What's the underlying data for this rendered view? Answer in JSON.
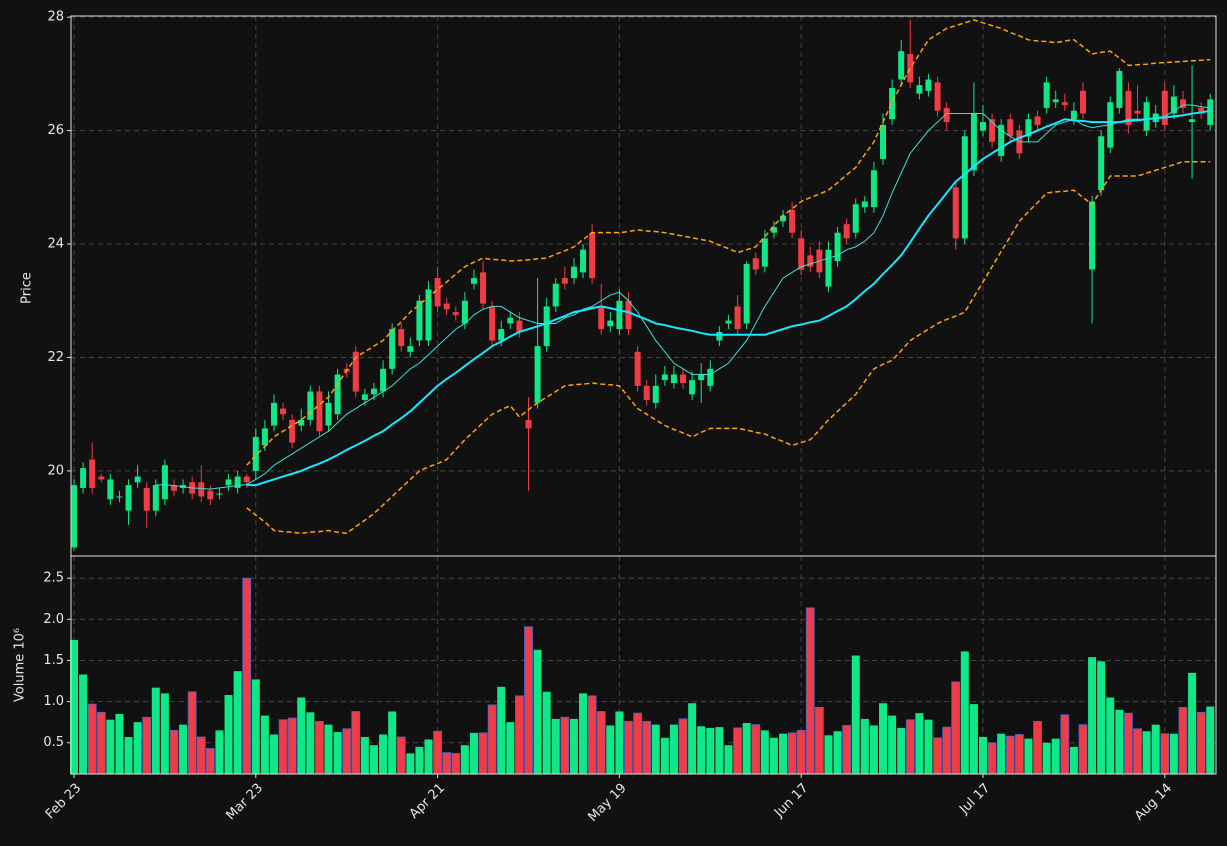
{
  "chart_data": {
    "type": "candlestick",
    "categories": [
      "Feb 23",
      null,
      null,
      null,
      null,
      null,
      null,
      null,
      null,
      null,
      null,
      null,
      null,
      null,
      null,
      null,
      null,
      null,
      null,
      null,
      "Mar 23",
      null,
      null,
      null,
      null,
      null,
      null,
      null,
      null,
      null,
      null,
      null,
      null,
      null,
      null,
      null,
      null,
      null,
      null,
      null,
      "Apr 21",
      null,
      null,
      null,
      null,
      null,
      null,
      null,
      null,
      null,
      null,
      null,
      null,
      null,
      null,
      null,
      null,
      null,
      null,
      null,
      "May 19",
      null,
      null,
      null,
      null,
      null,
      null,
      null,
      null,
      null,
      null,
      null,
      null,
      null,
      null,
      null,
      null,
      null,
      null,
      null,
      "Jun 17",
      null,
      null,
      null,
      null,
      null,
      null,
      null,
      null,
      null,
      null,
      null,
      null,
      null,
      null,
      null,
      null,
      null,
      null,
      null,
      "Jul 17",
      null,
      null,
      null,
      null,
      null,
      null,
      null,
      null,
      null,
      null,
      null,
      null,
      null,
      null,
      null,
      null,
      null,
      null,
      null,
      "Aug 14",
      null,
      null,
      null,
      null,
      null
    ],
    "open": [
      18.65,
      19.7,
      20.2,
      19.9,
      19.5,
      19.55,
      19.3,
      19.8,
      19.7,
      19.3,
      19.5,
      19.75,
      19.7,
      19.8,
      19.8,
      19.65,
      19.6,
      19.75,
      19.7,
      19.9,
      20.0,
      20.45,
      20.8,
      21.1,
      20.9,
      20.8,
      20.9,
      21.4,
      20.8,
      21.0,
      21.8,
      22.1,
      21.25,
      21.35,
      21.4,
      21.8,
      22.5,
      22.1,
      22.3,
      22.3,
      23.4,
      22.95,
      22.8,
      22.6,
      23.3,
      23.5,
      22.9,
      22.3,
      22.6,
      22.65,
      20.9,
      21.2,
      22.2,
      22.9,
      23.4,
      23.4,
      23.5,
      24.2,
      22.9,
      22.55,
      22.5,
      23.0,
      22.1,
      21.5,
      21.2,
      21.6,
      21.55,
      21.7,
      21.35,
      21.6,
      21.5,
      22.3,
      22.6,
      22.9,
      22.6,
      23.75,
      23.6,
      24.2,
      24.4,
      24.6,
      24.1,
      23.8,
      23.9,
      23.25,
      23.7,
      24.35,
      24.2,
      24.65,
      24.65,
      25.5,
      26.2,
      26.9,
      27.35,
      26.65,
      26.7,
      26.85,
      26.4,
      25.0,
      24.1,
      25.3,
      26.0,
      26.2,
      25.55,
      26.2,
      26.0,
      25.9,
      26.25,
      26.4,
      26.5,
      26.5,
      26.2,
      26.7,
      23.55,
      24.95,
      25.7,
      26.4,
      26.7,
      26.35,
      26.0,
      26.15,
      26.7,
      26.3,
      26.55,
      26.15,
      26.4,
      26.1
    ],
    "high": [
      19.85,
      20.15,
      20.5,
      19.95,
      19.95,
      19.65,
      19.85,
      20.1,
      19.8,
      19.85,
      20.2,
      19.85,
      19.85,
      19.9,
      20.1,
      19.75,
      19.7,
      19.95,
      20.0,
      19.95,
      20.75,
      20.9,
      21.35,
      21.2,
      21.0,
      21.1,
      21.5,
      21.5,
      21.4,
      21.8,
      21.9,
      22.2,
      21.45,
      21.55,
      21.95,
      22.6,
      22.6,
      22.35,
      23.1,
      23.35,
      23.6,
      23.05,
      22.9,
      23.15,
      23.55,
      23.7,
      23.0,
      22.65,
      22.8,
      22.8,
      21.3,
      23.4,
      23.05,
      23.4,
      23.6,
      23.75,
      24.0,
      24.35,
      23.3,
      22.8,
      23.2,
      23.15,
      22.2,
      21.6,
      21.7,
      21.85,
      21.85,
      21.8,
      21.75,
      21.9,
      21.95,
      22.55,
      22.75,
      23.1,
      23.7,
      23.85,
      24.25,
      24.4,
      24.6,
      24.75,
      24.25,
      23.95,
      24.05,
      24.05,
      24.3,
      24.45,
      24.8,
      24.85,
      25.45,
      26.3,
      26.9,
      27.6,
      27.95,
      26.95,
      27.0,
      26.95,
      26.5,
      25.1,
      26.0,
      26.85,
      26.45,
      26.3,
      26.2,
      26.3,
      26.1,
      26.3,
      26.35,
      26.95,
      26.7,
      26.65,
      26.5,
      26.85,
      24.85,
      26.0,
      26.6,
      27.1,
      26.85,
      26.8,
      26.6,
      26.45,
      26.85,
      26.8,
      26.7,
      27.15,
      26.5,
      26.65
    ],
    "low": [
      18.6,
      19.6,
      19.6,
      19.8,
      19.4,
      19.45,
      19.05,
      19.7,
      19.0,
      19.2,
      19.4,
      19.55,
      19.6,
      19.5,
      19.45,
      19.4,
      19.5,
      19.65,
      19.6,
      19.7,
      19.85,
      20.35,
      20.7,
      20.9,
      20.4,
      20.7,
      20.8,
      20.6,
      20.7,
      20.9,
      21.65,
      21.3,
      21.15,
      21.25,
      21.3,
      21.7,
      22.1,
      22.0,
      22.2,
      22.2,
      22.8,
      22.75,
      22.65,
      22.5,
      23.2,
      22.85,
      22.2,
      22.2,
      22.5,
      22.35,
      19.65,
      21.1,
      22.1,
      22.8,
      23.2,
      23.3,
      23.4,
      23.3,
      22.4,
      22.45,
      22.4,
      22.4,
      21.4,
      21.15,
      21.1,
      21.5,
      21.45,
      21.45,
      21.25,
      21.2,
      21.4,
      22.2,
      22.5,
      22.4,
      22.5,
      23.45,
      23.5,
      24.1,
      24.3,
      24.1,
      23.45,
      23.5,
      23.4,
      23.15,
      23.6,
      24.0,
      24.1,
      24.55,
      24.55,
      25.4,
      26.1,
      26.8,
      26.75,
      26.55,
      26.6,
      26.25,
      26.0,
      23.9,
      24.0,
      25.2,
      25.9,
      25.7,
      25.45,
      25.8,
      25.5,
      25.8,
      26.0,
      26.3,
      26.4,
      26.35,
      26.1,
      26.2,
      22.6,
      24.85,
      25.6,
      26.3,
      25.95,
      26.2,
      25.9,
      26.05,
      26.0,
      26.2,
      26.3,
      25.15,
      26.2,
      26.0
    ],
    "close": [
      19.75,
      20.05,
      19.7,
      19.85,
      19.85,
      19.55,
      19.75,
      19.9,
      19.3,
      19.75,
      20.1,
      19.65,
      19.75,
      19.6,
      19.55,
      19.5,
      19.6,
      19.85,
      19.9,
      19.8,
      20.6,
      20.75,
      21.2,
      21.0,
      20.5,
      20.9,
      21.4,
      20.7,
      21.2,
      21.7,
      21.75,
      21.4,
      21.35,
      21.45,
      21.8,
      22.5,
      22.2,
      22.2,
      23.0,
      23.2,
      22.9,
      22.85,
      22.75,
      23.0,
      23.4,
      22.95,
      22.3,
      22.5,
      22.7,
      22.45,
      20.75,
      22.2,
      22.9,
      23.3,
      23.3,
      23.6,
      23.9,
      23.4,
      22.5,
      22.65,
      23.0,
      22.5,
      21.5,
      21.25,
      21.5,
      21.7,
      21.7,
      21.55,
      21.6,
      21.7,
      21.8,
      22.45,
      22.65,
      22.5,
      23.65,
      23.55,
      24.1,
      24.3,
      24.5,
      24.2,
      23.55,
      23.6,
      23.5,
      23.9,
      24.2,
      24.1,
      24.7,
      24.75,
      25.3,
      26.1,
      26.75,
      27.4,
      26.85,
      26.8,
      26.9,
      26.35,
      26.15,
      24.1,
      25.9,
      26.3,
      26.15,
      25.8,
      26.1,
      25.9,
      25.6,
      26.2,
      26.1,
      26.85,
      26.55,
      26.45,
      26.35,
      26.3,
      24.75,
      25.9,
      26.5,
      27.05,
      26.1,
      26.3,
      26.5,
      26.3,
      26.1,
      26.6,
      26.4,
      26.2,
      26.3,
      26.55
    ],
    "volume": [
      1.75,
      1.33,
      0.97,
      0.87,
      0.78,
      0.85,
      0.57,
      0.75,
      0.81,
      1.17,
      1.1,
      0.65,
      0.72,
      1.12,
      0.57,
      0.43,
      0.65,
      1.08,
      1.37,
      2.5,
      1.27,
      0.83,
      0.6,
      0.78,
      0.8,
      1.05,
      0.87,
      0.76,
      0.72,
      0.63,
      0.67,
      0.88,
      0.57,
      0.47,
      0.6,
      0.88,
      0.57,
      0.37,
      0.45,
      0.54,
      0.64,
      0.38,
      0.37,
      0.47,
      0.62,
      0.62,
      0.96,
      1.18,
      0.75,
      1.07,
      1.91,
      1.63,
      1.12,
      0.79,
      0.81,
      0.79,
      1.1,
      1.07,
      0.88,
      0.71,
      0.88,
      0.76,
      0.86,
      0.76,
      0.72,
      0.56,
      0.72,
      0.79,
      0.98,
      0.7,
      0.68,
      0.69,
      0.47,
      0.68,
      0.74,
      0.72,
      0.65,
      0.56,
      0.61,
      0.62,
      0.65,
      2.14,
      0.93,
      0.59,
      0.64,
      0.71,
      1.56,
      0.79,
      0.71,
      0.98,
      0.83,
      0.68,
      0.78,
      0.86,
      0.78,
      0.56,
      0.69,
      1.24,
      1.61,
      0.97,
      0.57,
      0.5,
      0.61,
      0.58,
      0.6,
      0.55,
      0.76,
      0.5,
      0.55,
      0.84,
      0.45,
      0.72,
      1.54,
      1.49,
      1.05,
      0.9,
      0.86,
      0.67,
      0.64,
      0.72,
      0.61,
      0.61,
      0.93,
      1.35,
      0.87,
      0.94
    ],
    "up_color": "#10e887",
    "down_color": "#f03c45",
    "down_volume_edge": "#4a62c8",
    "overlays": [
      {
        "color": "#3ee0d6",
        "width": 1,
        "dash": false,
        "values": [
          null,
          null,
          null,
          null,
          null,
          null,
          null,
          null,
          null,
          19.75,
          19.76,
          19.74,
          19.72,
          19.7,
          19.69,
          19.68,
          19.7,
          19.72,
          19.74,
          19.76,
          19.85,
          19.95,
          20.1,
          20.2,
          20.3,
          20.4,
          20.5,
          20.6,
          20.7,
          20.85,
          21.0,
          21.1,
          21.2,
          21.3,
          21.4,
          21.5,
          21.65,
          21.8,
          21.9,
          22.05,
          22.2,
          22.35,
          22.5,
          22.6,
          22.75,
          22.85,
          22.9,
          22.9,
          22.8,
          22.7,
          22.65,
          22.6,
          22.6,
          22.6,
          22.7,
          22.75,
          22.85,
          22.9,
          23.0,
          23.1,
          23.15,
          23.0,
          22.8,
          22.55,
          22.3,
          22.1,
          21.9,
          21.8,
          21.7,
          21.7,
          21.7,
          21.8,
          21.9,
          22.1,
          22.3,
          22.6,
          22.9,
          23.15,
          23.4,
          23.5,
          23.6,
          23.65,
          23.7,
          23.75,
          23.8,
          23.9,
          23.95,
          24.05,
          24.2,
          24.5,
          24.9,
          25.25,
          25.6,
          25.8,
          26.0,
          26.15,
          26.3,
          26.3,
          26.3,
          26.3,
          26.3,
          26.15,
          26.0,
          25.9,
          25.8,
          25.8,
          25.8,
          25.95,
          26.1,
          26.15,
          26.2,
          26.1,
          26.05,
          26.08,
          26.1,
          26.15,
          26.2,
          26.2,
          26.2,
          26.22,
          26.25,
          26.35,
          26.45,
          26.45,
          26.42,
          26.4
        ]
      },
      {
        "color": "#18e8ff",
        "width": 2,
        "dash": false,
        "values": [
          null,
          null,
          null,
          null,
          null,
          null,
          null,
          null,
          null,
          null,
          null,
          null,
          null,
          null,
          null,
          null,
          null,
          null,
          null,
          19.75,
          19.75,
          19.8,
          19.85,
          19.9,
          19.95,
          20.0,
          20.07,
          20.13,
          20.2,
          20.28,
          20.37,
          20.45,
          20.53,
          20.62,
          20.7,
          20.82,
          20.93,
          21.05,
          21.2,
          21.35,
          21.5,
          21.62,
          21.73,
          21.85,
          21.97,
          22.08,
          22.2,
          22.28,
          22.37,
          22.45,
          22.5,
          22.55,
          22.6,
          22.67,
          22.73,
          22.8,
          22.83,
          22.87,
          22.9,
          22.87,
          22.83,
          22.8,
          22.73,
          22.67,
          22.6,
          22.57,
          22.53,
          22.5,
          22.47,
          22.43,
          22.4,
          22.4,
          22.4,
          22.4,
          22.4,
          22.4,
          22.4,
          22.45,
          22.5,
          22.55,
          22.58,
          22.62,
          22.65,
          22.73,
          22.82,
          22.9,
          23.03,
          23.17,
          23.3,
          23.47,
          23.63,
          23.8,
          24.03,
          24.27,
          24.5,
          24.7,
          24.9,
          25.1,
          25.23,
          25.37,
          25.5,
          25.6,
          25.7,
          25.8,
          25.87,
          25.93,
          26.0,
          26.07,
          26.13,
          26.2,
          26.18,
          26.17,
          26.15,
          26.15,
          26.15,
          26.15,
          26.17,
          26.18,
          26.2,
          26.22,
          26.23,
          26.25,
          26.27,
          26.3,
          26.32,
          26.35
        ]
      },
      {
        "color": "#ffa20a",
        "width": 1.5,
        "dash": true,
        "values": [
          null,
          null,
          null,
          null,
          null,
          null,
          null,
          null,
          null,
          null,
          null,
          null,
          null,
          null,
          null,
          null,
          null,
          null,
          null,
          20.1,
          20.27,
          20.43,
          20.6,
          20.7,
          20.8,
          20.9,
          21.03,
          21.17,
          21.3,
          21.53,
          21.77,
          22.0,
          22.1,
          22.2,
          22.3,
          22.47,
          22.63,
          22.8,
          22.93,
          23.07,
          23.2,
          23.33,
          23.47,
          23.6,
          23.68,
          23.75,
          23.73,
          23.72,
          23.7,
          23.71,
          23.72,
          23.74,
          23.75,
          23.82,
          23.88,
          23.95,
          24.08,
          24.2,
          24.2,
          24.2,
          24.2,
          24.22,
          24.25,
          24.23,
          24.22,
          24.2,
          24.17,
          24.14,
          24.11,
          24.08,
          24.05,
          23.98,
          23.92,
          23.85,
          23.9,
          23.95,
          24.13,
          24.32,
          24.5,
          24.62,
          24.75,
          24.82,
          24.88,
          24.95,
          25.08,
          25.22,
          25.35,
          25.58,
          25.8,
          26.15,
          26.5,
          26.8,
          27.1,
          27.35,
          27.6,
          27.7,
          27.8,
          27.85,
          27.9,
          27.95,
          27.9,
          27.85,
          27.8,
          27.73,
          27.67,
          27.6,
          27.58,
          27.57,
          27.55,
          27.58,
          27.6,
          27.48,
          27.35,
          27.38,
          27.4,
          27.28,
          27.15,
          27.16,
          27.17,
          27.19,
          27.2,
          27.21,
          27.22,
          27.23,
          27.24,
          27.25
        ]
      },
      {
        "color": "#ffa20a",
        "width": 1.5,
        "dash": true,
        "values": [
          null,
          null,
          null,
          null,
          null,
          null,
          null,
          null,
          null,
          null,
          null,
          null,
          null,
          null,
          null,
          null,
          null,
          null,
          null,
          19.35,
          19.22,
          19.1,
          18.95,
          18.93,
          18.92,
          18.9,
          18.92,
          18.93,
          18.95,
          18.92,
          18.9,
          19.02,
          19.13,
          19.25,
          19.4,
          19.55,
          19.7,
          19.85,
          20.0,
          20.07,
          20.13,
          20.2,
          20.38,
          20.55,
          20.7,
          20.85,
          21.0,
          21.08,
          21.15,
          20.95,
          21.08,
          21.2,
          21.3,
          21.4,
          21.5,
          21.52,
          21.53,
          21.55,
          21.53,
          21.52,
          21.5,
          21.3,
          21.1,
          21.0,
          20.9,
          20.8,
          20.73,
          20.67,
          20.6,
          20.68,
          20.75,
          20.75,
          20.75,
          20.75,
          20.72,
          20.68,
          20.65,
          20.58,
          20.52,
          20.45,
          20.5,
          20.55,
          20.72,
          20.9,
          21.05,
          21.2,
          21.35,
          21.58,
          21.8,
          21.88,
          21.95,
          22.12,
          22.3,
          22.4,
          22.5,
          22.6,
          22.67,
          22.73,
          22.8,
          23.07,
          23.33,
          23.6,
          23.87,
          24.13,
          24.4,
          24.57,
          24.73,
          24.9,
          24.92,
          24.93,
          24.95,
          24.82,
          24.7,
          24.95,
          25.2,
          25.2,
          25.2,
          25.2,
          25.25,
          25.3,
          25.35,
          25.4,
          25.45,
          25.45,
          25.45,
          25.45
        ]
      }
    ],
    "ylabel": "Price",
    "ylim": [
      18.5,
      28.02
    ],
    "yticks": [
      20,
      22,
      24,
      26,
      28
    ],
    "volume_ylabel": "Volume  10⁶",
    "volume_ylim": [
      0.12,
      2.77
    ],
    "volume_yticks": [
      0.5,
      {
        "value": 1,
        "label": "1.0"
      },
      1.5,
      {
        "value": 2,
        "label": "2.0"
      },
      2.5
    ],
    "grid": true
  }
}
